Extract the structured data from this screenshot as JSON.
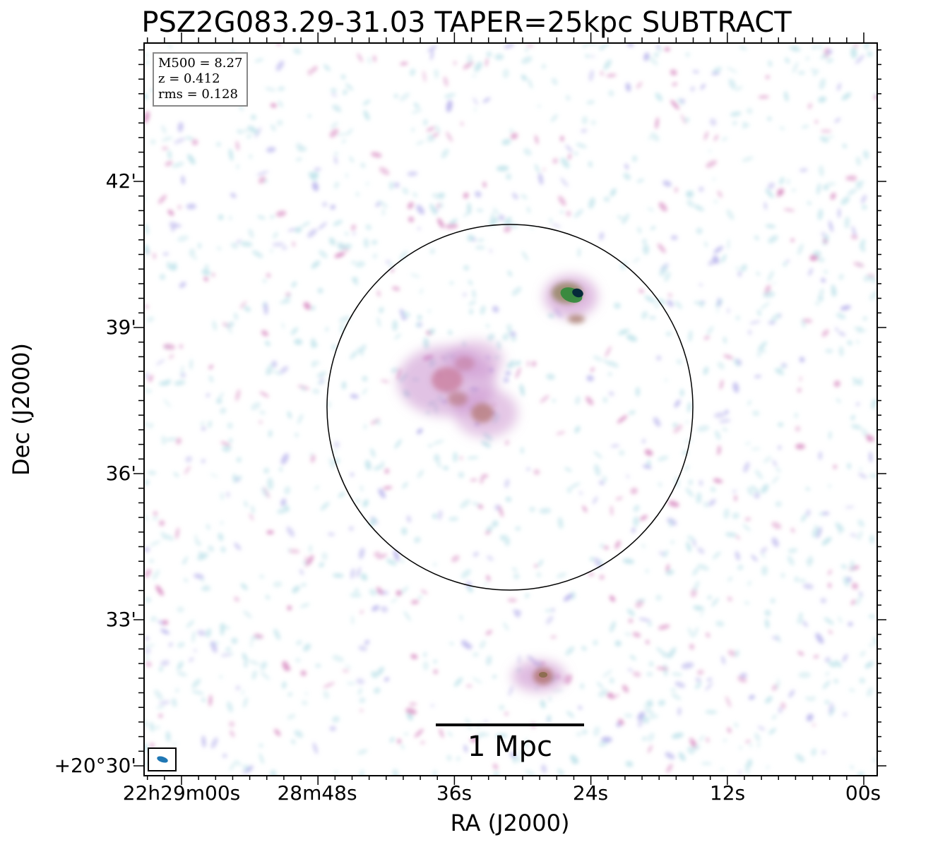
{
  "title": "PSZ2G083.29-31.03 TAPER=25kpc SUBTRACT",
  "axes": {
    "xlabel": "RA (J2000)",
    "ylabel": "Dec (J2000)",
    "x_ticks": [
      "22h29m00s",
      "28m48s",
      "36s",
      "24s",
      "12s",
      "00s"
    ],
    "y_ticks": [
      "42'",
      "39'",
      "36'",
      "33'",
      "+20°30'"
    ]
  },
  "info": {
    "mass": "M500 = 8.27",
    "redshift": "z = 0.412",
    "rms": "rms = 0.128"
  },
  "scalebar": {
    "label": "1 Mpc"
  },
  "colors": {
    "noise_light": "#bfe3ea",
    "noise_mid": "#b9b4ec",
    "emission_pink": "#d98fc3",
    "emission_brown": "#b57a7a",
    "peak_green": "#2f8a3a",
    "peak_dark": "#062a3a",
    "beam": "#1f77b4"
  },
  "colormap": "cubehelix-like (white to blue to pink to green to dark)"
}
